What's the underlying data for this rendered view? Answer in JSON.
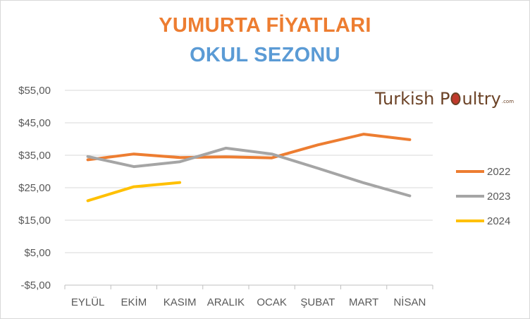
{
  "colors": {
    "title1": "#ed7d31",
    "title2": "#5b9bd5",
    "series_2022": "#ed7d31",
    "series_2023": "#a5a5a5",
    "series_2024": "#ffc000",
    "logo_text": "#6b4226",
    "logo_egg": "#c0392b"
  },
  "logo": {
    "part1": "Turkish P",
    "part2": "ultry",
    "suffix": ".com"
  },
  "chart_data": {
    "type": "line",
    "title": "YUMURTA FİYATLARI",
    "subtitle": "OKUL SEZONU",
    "categories": [
      "EYLÜL",
      "EKİM",
      "KASIM",
      "ARALIK",
      "OCAK",
      "ŞUBAT",
      "MART",
      "NİSAN"
    ],
    "y_ticks": [
      "$55,00",
      "$45,00",
      "$35,00",
      "$25,00",
      "$15,00",
      "$5,00",
      "-$5,00"
    ],
    "ylim": [
      -5,
      55
    ],
    "grid": true,
    "legend_position": "right",
    "series": [
      {
        "name": "2022",
        "values": [
          33.6,
          35.4,
          34.3,
          34.5,
          34.2,
          38.2,
          41.5,
          39.8
        ]
      },
      {
        "name": "2023",
        "values": [
          34.6,
          31.5,
          33.0,
          37.2,
          35.4,
          31.0,
          26.5,
          22.5
        ]
      },
      {
        "name": "2024",
        "values": [
          21.0,
          25.3,
          26.6,
          null,
          null,
          null,
          null,
          null
        ]
      }
    ]
  }
}
